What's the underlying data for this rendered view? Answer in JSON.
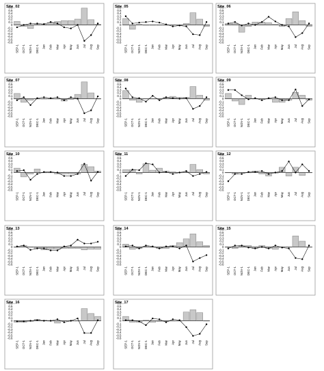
{
  "chart_data": {
    "type": "bar",
    "layout": "small multiples, 3 columns x 6 rows",
    "categories": [
      "SEP-1",
      "OCT-1",
      "NOV-1",
      "DEC-1",
      "Jan",
      "Feb",
      "Mar",
      "Apr",
      "May",
      "Jun",
      "Jul",
      "Aug",
      "Sep"
    ],
    "y_ticks": [
      "0.6",
      "0.5",
      "0.4",
      "0.3",
      "0.2",
      "0.1",
      "0",
      "-0.1",
      "-0.2",
      "-0.3",
      "-0.4",
      "-0.5",
      "-0.6"
    ],
    "ylim": [
      -0.6,
      0.6
    ],
    "grid": false,
    "bar_color": "#c8c8c8",
    "line_color": "#000000",
    "panels": [
      {
        "title": "Site_02",
        "bars": [
          0.12,
          -0.05,
          -0.12,
          0.02,
          0.02,
          0.08,
          0.12,
          0.15,
          0.15,
          0.2,
          0.58,
          0.18,
          0.02
        ],
        "line": [
          -0.08,
          0.0,
          0.05,
          0.05,
          0.03,
          0.1,
          0.05,
          -0.08,
          -0.12,
          0.0,
          -0.55,
          -0.35,
          0.05
        ]
      },
      {
        "title": "Site_05",
        "bars": [
          0.22,
          -0.15,
          0.02,
          0.0,
          0.0,
          0.0,
          0.0,
          0.0,
          -0.02,
          0.05,
          0.42,
          0.2,
          -0.05
        ],
        "line": [
          0.3,
          0.05,
          0.08,
          0.1,
          0.12,
          0.08,
          0.02,
          -0.05,
          -0.02,
          -0.05,
          -0.32,
          -0.35,
          0.1
        ]
      },
      {
        "title": "Site_06",
        "bars": [
          0.05,
          0.05,
          -0.25,
          -0.05,
          0.1,
          0.1,
          0.08,
          0.02,
          -0.05,
          0.22,
          0.45,
          0.15,
          -0.05
        ],
        "line": [
          0.05,
          0.1,
          -0.02,
          0.05,
          0.0,
          0.1,
          0.28,
          0.12,
          0.0,
          -0.05,
          -0.42,
          -0.28,
          0.05
        ]
      },
      {
        "title": "Site_07",
        "bars": [
          0.18,
          -0.12,
          -0.05,
          0.0,
          0.0,
          0.0,
          0.0,
          -0.08,
          -0.02,
          0.15,
          0.58,
          0.2,
          0.0
        ],
        "line": [
          -0.05,
          0.05,
          -0.22,
          0.02,
          0.05,
          0.02,
          0.05,
          -0.05,
          0.05,
          0.0,
          -0.5,
          -0.4,
          0.08
        ]
      },
      {
        "title": "Site_08",
        "bars": [
          0.28,
          -0.05,
          -0.12,
          0.0,
          0.0,
          0.0,
          0.05,
          0.08,
          0.05,
          0.05,
          0.42,
          0.12,
          -0.05
        ],
        "line": [
          0.35,
          0.05,
          0.02,
          -0.1,
          0.1,
          -0.05,
          0.05,
          0.02,
          0.0,
          0.02,
          -0.35,
          -0.25,
          0.05
        ]
      },
      {
        "title": "Site_09",
        "bars": [
          0.18,
          -0.08,
          -0.2,
          0.12,
          0.0,
          0.0,
          0.0,
          -0.12,
          -0.12,
          -0.05,
          0.22,
          0.12,
          -0.05
        ],
        "line": [
          0.3,
          0.3,
          0.12,
          -0.02,
          0.02,
          -0.05,
          0.02,
          0.05,
          -0.05,
          -0.05,
          0.32,
          -0.25,
          -0.02
        ]
      },
      {
        "title": "Site_10",
        "bars": [
          0.15,
          -0.15,
          -0.05,
          0.12,
          0.0,
          0.0,
          -0.05,
          -0.05,
          -0.05,
          -0.05,
          0.28,
          0.2,
          0.05
        ],
        "line": [
          0.05,
          0.08,
          -0.25,
          -0.05,
          0.02,
          0.02,
          0.0,
          -0.12,
          -0.12,
          -0.05,
          0.3,
          -0.28,
          0.02
        ]
      },
      {
        "title": "Site_11",
        "bars": [
          0.1,
          0.1,
          -0.05,
          0.3,
          0.08,
          0.15,
          0.05,
          0.02,
          0.0,
          0.02,
          0.28,
          0.1,
          -0.05
        ],
        "line": [
          -0.12,
          0.1,
          0.08,
          0.32,
          0.28,
          0.0,
          0.02,
          -0.05,
          0.0,
          0.05,
          -0.12,
          -0.05,
          0.02
        ]
      },
      {
        "title": "Site_12",
        "bars": [
          0.0,
          -0.05,
          0.0,
          0.0,
          0.05,
          -0.05,
          -0.12,
          -0.02,
          0.18,
          -0.12,
          0.18,
          -0.1,
          0.0
        ],
        "line": [
          -0.3,
          -0.05,
          -0.05,
          0.02,
          0.02,
          0.05,
          -0.05,
          0.0,
          0.05,
          0.38,
          0.0,
          0.28,
          0.05
        ]
      },
      {
        "title": "Site_13",
        "bars": [
          0.0,
          0.05,
          0.0,
          -0.05,
          -0.1,
          -0.08,
          -0.08,
          -0.05,
          -0.05,
          -0.05,
          -0.1,
          -0.08,
          -0.08
        ],
        "line": [
          0.02,
          0.05,
          -0.1,
          -0.05,
          -0.05,
          -0.12,
          -0.12,
          0.02,
          0.05,
          0.25,
          0.12,
          0.12,
          0.18
        ]
      },
      {
        "title": "Site_14",
        "bars": [
          0.1,
          -0.08,
          -0.05,
          0.02,
          0.0,
          -0.05,
          -0.05,
          0.05,
          0.15,
          0.28,
          0.45,
          0.18,
          0.05
        ],
        "line": [
          0.02,
          0.05,
          -0.05,
          0.05,
          0.02,
          -0.05,
          0.02,
          0.02,
          -0.05,
          0.05,
          -0.5,
          -0.38,
          -0.28
        ]
      },
      {
        "title": "Site_15",
        "bars": [
          0.0,
          -0.05,
          0.05,
          0.05,
          -0.05,
          0.05,
          -0.05,
          -0.08,
          0.0,
          0.0,
          0.38,
          0.2,
          0.0
        ],
        "line": [
          -0.05,
          0.05,
          0.05,
          -0.02,
          -0.05,
          0.0,
          -0.05,
          0.05,
          -0.02,
          -0.05,
          -0.38,
          -0.42,
          0.05
        ]
      },
      {
        "title": "Site_16",
        "bars": [
          -0.05,
          -0.05,
          -0.02,
          0.05,
          0.02,
          0.0,
          -0.08,
          0.0,
          0.0,
          0.0,
          0.42,
          0.25,
          0.15
        ],
        "line": [
          -0.02,
          -0.02,
          0.0,
          0.02,
          0.0,
          0.0,
          0.05,
          -0.05,
          0.0,
          0.08,
          -0.42,
          -0.42,
          0.02
        ]
      },
      {
        "title": "Site_17",
        "bars": [
          0.15,
          -0.05,
          -0.05,
          0.02,
          -0.05,
          -0.02,
          -0.02,
          0.0,
          0.0,
          0.3,
          0.38,
          0.28,
          0.0
        ],
        "line": [
          0.02,
          0.02,
          -0.02,
          -0.15,
          0.08,
          0.05,
          -0.05,
          0.05,
          0.02,
          -0.22,
          -0.52,
          -0.45,
          -0.12
        ]
      }
    ]
  }
}
